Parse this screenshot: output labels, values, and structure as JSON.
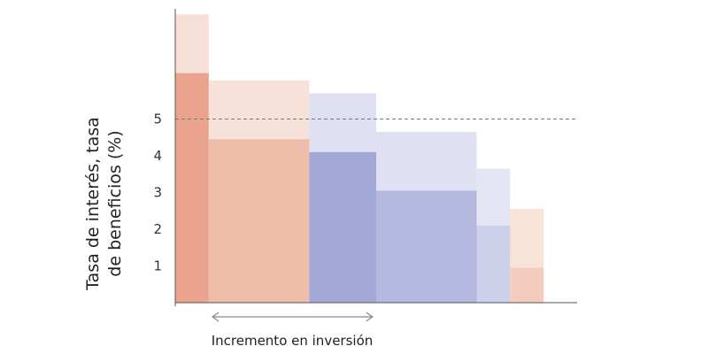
{
  "chart_data": {
    "type": "bar",
    "ylabel_lines": [
      "Tasa de interés, tasa",
      "de beneficios (%)"
    ],
    "xlabel": "Incremento en inversión",
    "yticks": [
      1,
      2,
      3,
      4,
      5
    ],
    "ylim": [
      0,
      8
    ],
    "reference_line": {
      "y": 5,
      "style": "dashed"
    },
    "grid": false,
    "legend": "none",
    "bars": [
      {
        "x0": 0.0,
        "x1": 0.9,
        "dark": 6.25,
        "light": 7.85,
        "color": "orange"
      },
      {
        "x0": 0.9,
        "x1": 3.6,
        "dark": 4.45,
        "light": 6.05,
        "color": "orange-light"
      },
      {
        "x0": 3.6,
        "x1": 5.4,
        "dark": 4.1,
        "light": 5.7,
        "color": "blue"
      },
      {
        "x0": 5.4,
        "x1": 8.1,
        "dark": 3.05,
        "light": 4.65,
        "color": "blue-light"
      },
      {
        "x0": 8.1,
        "x1": 9.0,
        "dark": 2.1,
        "light": 3.65,
        "color": "blue-lighter"
      },
      {
        "x0": 9.0,
        "x1": 9.9,
        "dark": 0.95,
        "light": 2.55,
        "color": "orange-pale"
      }
    ],
    "xlim": [
      0,
      10.8
    ],
    "arrow_range": [
      1.0,
      5.3
    ],
    "colors": {
      "orange": {
        "dark": "#eaa48d",
        "light": "#f6dfd6"
      },
      "orange-light": {
        "dark": "#eebca8",
        "light": "#f6e2d8"
      },
      "blue": {
        "dark": "#a3a8d7",
        "light": "#dfe1f2"
      },
      "blue-light": {
        "dark": "#b6b9df",
        "light": "#dfe1f2"
      },
      "blue-lighter": {
        "dark": "#cfd1ec",
        "light": "#e5e6f4"
      },
      "orange-pale": {
        "dark": "#f4ccbd",
        "light": "#f8e3d9"
      },
      "axis": "#555555",
      "refline": "#777777",
      "arrow": "#888888"
    }
  }
}
